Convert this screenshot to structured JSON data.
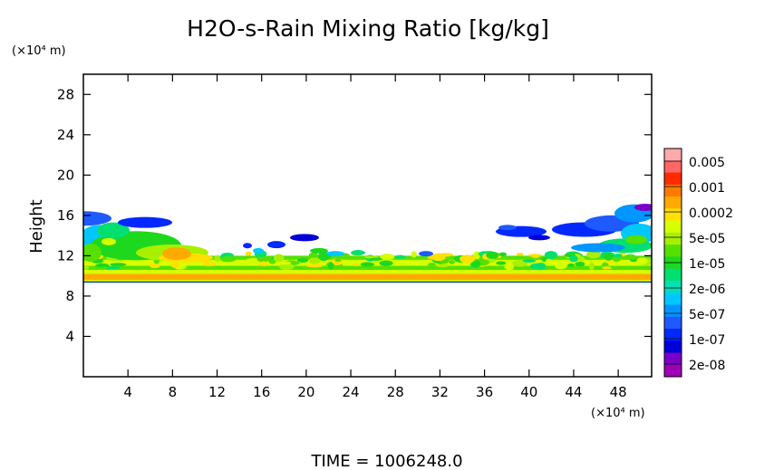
{
  "chart_data": {
    "type": "heatmap",
    "title": "H2O-s-Rain Mixing Ratio [kg/kg]",
    "ylabel": "Height",
    "y_unit": "(×10⁴ m)",
    "x_unit": "(×10⁴ m)",
    "xlim": [
      0,
      51
    ],
    "ylim": [
      0,
      30
    ],
    "x_ticks": [
      "4",
      "8",
      "12",
      "16",
      "20",
      "24",
      "28",
      "32",
      "36",
      "40",
      "44",
      "48"
    ],
    "y_ticks": [
      "4",
      "8",
      "12",
      "16",
      "20",
      "24",
      "28"
    ],
    "colorbar": {
      "labels": [
        "0.005",
        "0.001",
        "0.0002",
        "5e-05",
        "1e-05",
        "2e-06",
        "5e-07",
        "1e-07",
        "2e-08"
      ],
      "colors": [
        "#ffaaaa",
        "#ff6666",
        "#ff2a00",
        "#ff7a00",
        "#ffaa00",
        "#ffe000",
        "#d6ff00",
        "#a8f000",
        "#55e000",
        "#1ed81e",
        "#00e070",
        "#00e0b4",
        "#00c8ff",
        "#0096ff",
        "#1e5aff",
        "#0028ff",
        "#0000d8",
        "#7a00c8",
        "#a000b4"
      ]
    },
    "footer": "TIME = 1006248.0",
    "layers": [
      {
        "name": "base-band",
        "y0": 9.3,
        "y1": 10.6,
        "x0": 0,
        "x1": 51,
        "level": 6
      },
      {
        "name": "base-core",
        "y0": 9.6,
        "y1": 10.2,
        "x0": 0,
        "x1": 51,
        "level": 4
      },
      {
        "name": "mid-band",
        "y0": 10.6,
        "y1": 12.0,
        "x0": 0,
        "x1": 51,
        "level": 8
      },
      {
        "name": "mid-core",
        "y0": 11.0,
        "y1": 11.6,
        "x0": 0,
        "x1": 51,
        "level": 6
      }
    ]
  }
}
